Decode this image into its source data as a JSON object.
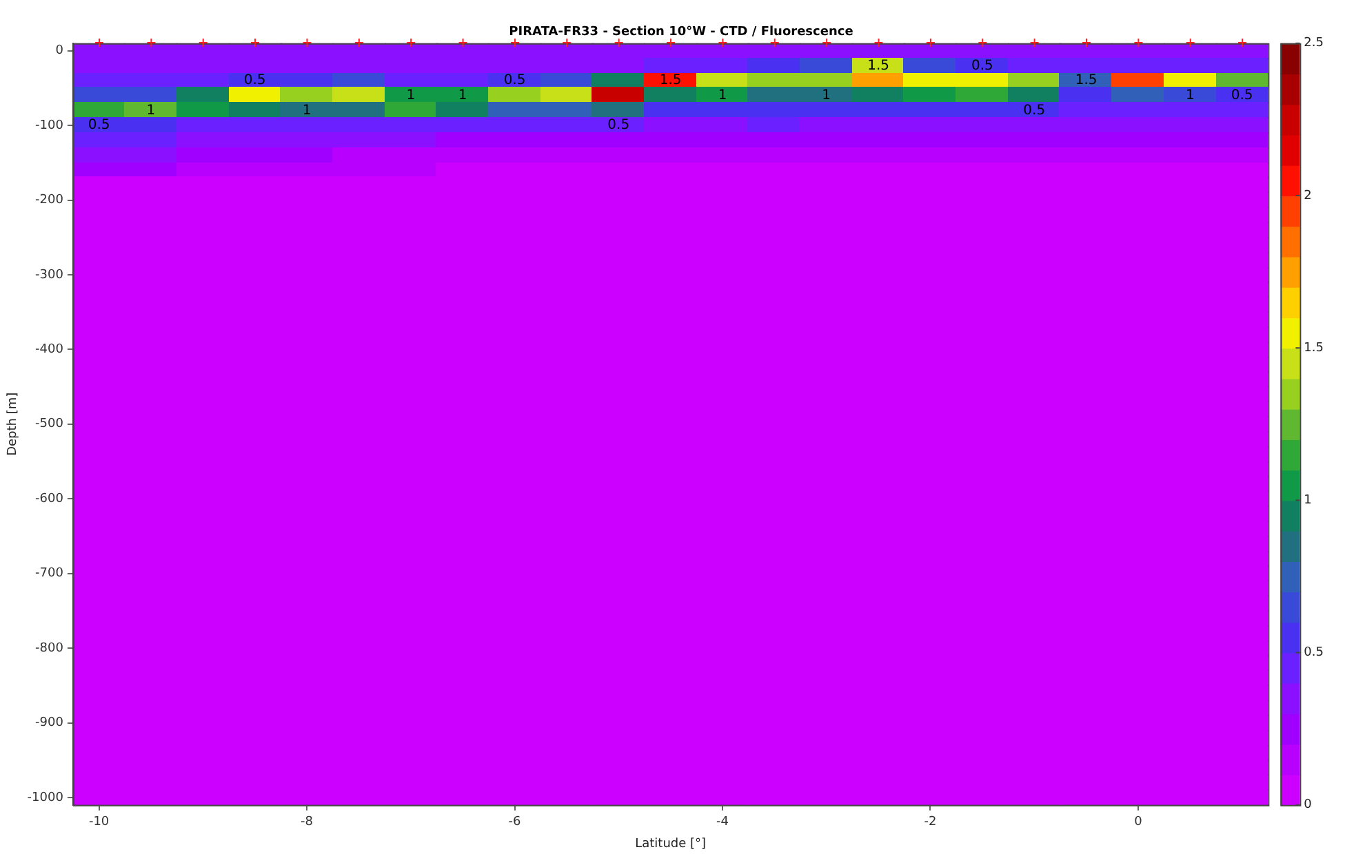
{
  "chart_data": {
    "type": "heatmap",
    "title": "PIRATA-FR33 - Section 10°W - CTD / Fluorescence",
    "xlabel": "Latitude [°]",
    "ylabel": "Depth [m]",
    "clim": [
      0,
      2.5
    ],
    "cticks": [
      0,
      0.5,
      1,
      1.5,
      2,
      2.5
    ],
    "categories": [
      "-10",
      null,
      null,
      null,
      "-8",
      null,
      null,
      null,
      "-6",
      null,
      null,
      null,
      "-4",
      null,
      null,
      null,
      "-2",
      null,
      null,
      null,
      "0",
      null,
      null
    ],
    "y_categories": [
      "0",
      null,
      null,
      null,
      null,
      "-100",
      null,
      null,
      null,
      null,
      "-200",
      null,
      null,
      null,
      null,
      "-300",
      null,
      null,
      null,
      null,
      "-400",
      null,
      null,
      null,
      null,
      "-500",
      null,
      null,
      null,
      null,
      "-600",
      null,
      null,
      null,
      null,
      "-700",
      null,
      null,
      null,
      null,
      "-800",
      null,
      null,
      null,
      null,
      "-900",
      null,
      null,
      null,
      null,
      "-1000"
    ],
    "cells": [
      [
        0.3,
        0.3,
        0.3,
        0.3,
        0.3,
        0.3,
        0.3,
        0.3,
        0.3,
        0.3,
        0.3,
        0.3,
        0.3,
        0.3,
        0.3,
        0.3,
        0.3,
        0.3,
        0.3,
        0.3,
        0.3,
        0.3,
        0.3
      ],
      [
        0.3,
        0.3,
        0.3,
        0.3,
        0.3,
        0.3,
        0.3,
        0.3,
        0.3,
        0.3,
        0.3,
        0.4,
        0.4,
        0.5,
        0.6,
        1.4,
        0.6,
        0.5,
        0.4,
        0.4,
        0.4,
        0.4,
        0.4
      ],
      [
        0.4,
        0.4,
        0.4,
        0.5,
        0.5,
        0.6,
        0.4,
        0.4,
        0.5,
        0.6,
        0.9,
        2.0,
        1.4,
        1.3,
        1.3,
        1.7,
        1.5,
        1.5,
        1.3,
        0.7,
        1.9,
        1.5,
        1.2
      ],
      [
        0.6,
        0.6,
        0.9,
        1.5,
        1.3,
        1.4,
        1.0,
        1.0,
        1.3,
        1.4,
        2.2,
        0.9,
        1.0,
        0.8,
        0.8,
        0.9,
        1.0,
        1.1,
        0.9,
        0.5,
        0.7,
        0.6,
        0.5
      ],
      [
        1.1,
        1.2,
        1.0,
        0.9,
        0.8,
        0.8,
        1.1,
        0.9,
        0.7,
        0.7,
        0.8,
        0.5,
        0.5,
        0.5,
        0.5,
        0.5,
        0.5,
        0.5,
        0.5,
        0.4,
        0.4,
        0.4,
        0.4
      ],
      [
        0.5,
        0.5,
        0.4,
        0.4,
        0.4,
        0.4,
        0.4,
        0.4,
        0.4,
        0.4,
        0.4,
        0.3,
        0.3,
        0.4,
        0.3,
        0.3,
        0.3,
        0.3,
        0.3,
        0.3,
        0.3,
        0.3,
        0.3
      ],
      [
        0.4,
        0.4,
        0.3,
        0.3,
        0.3,
        0.3,
        0.3,
        0.2,
        0.2,
        0.2,
        0.2,
        0.2,
        0.2,
        0.2,
        0.2,
        0.2,
        0.2,
        0.2,
        0.2,
        0.2,
        0.2,
        0.2,
        0.2
      ],
      [
        0.3,
        0.3,
        0.2,
        0.2,
        0.2,
        0.1,
        0.1,
        0.1,
        0.1,
        0.1,
        0.1,
        0.1,
        0.1,
        0.1,
        0.1,
        0.1,
        0.1,
        0.1,
        0.1,
        0.1,
        0.1,
        0.1,
        0.1
      ],
      [
        0.2,
        0.2,
        0.1,
        0.1,
        0.1,
        0.1,
        0.1,
        0,
        0,
        0,
        0,
        0,
        0,
        0,
        0,
        0,
        0,
        0,
        0,
        0,
        0,
        0,
        0
      ],
      [
        0,
        0,
        0,
        0,
        0,
        0,
        0,
        0,
        0,
        0,
        0,
        0,
        0,
        0,
        0,
        0,
        0,
        0,
        0,
        0,
        0,
        0,
        0
      ],
      [
        0,
        0,
        0,
        0,
        0,
        0,
        0,
        0,
        0,
        0,
        0,
        0,
        0,
        0,
        0,
        0,
        0,
        0,
        0,
        0,
        0,
        0,
        0
      ],
      [
        0,
        0,
        0,
        0,
        0,
        0,
        0,
        0,
        0,
        0,
        0,
        0,
        0,
        0,
        0,
        0,
        0,
        0,
        0,
        0,
        0,
        0,
        0
      ],
      [
        0,
        0,
        0,
        0,
        0,
        0,
        0,
        0,
        0,
        0,
        0,
        0,
        0,
        0,
        0,
        0,
        0,
        0,
        0,
        0,
        0,
        0,
        0
      ],
      [
        0,
        0,
        0,
        0,
        0,
        0,
        0,
        0,
        0,
        0,
        0,
        0,
        0,
        0,
        0,
        0,
        0,
        0,
        0,
        0,
        0,
        0,
        0
      ],
      [
        0,
        0,
        0,
        0,
        0,
        0,
        0,
        0,
        0,
        0,
        0,
        0,
        0,
        0,
        0,
        0,
        0,
        0,
        0,
        0,
        0,
        0,
        0
      ],
      [
        0,
        0,
        0,
        0,
        0,
        0,
        0,
        0,
        0,
        0,
        0,
        0,
        0,
        0,
        0,
        0,
        0,
        0,
        0,
        0,
        0,
        0,
        0
      ],
      [
        0,
        0,
        0,
        0,
        0,
        0,
        0,
        0,
        0,
        0,
        0,
        0,
        0,
        0,
        0,
        0,
        0,
        0,
        0,
        0,
        0,
        0,
        0
      ],
      [
        0,
        0,
        0,
        0,
        0,
        0,
        0,
        0,
        0,
        0,
        0,
        0,
        0,
        0,
        0,
        0,
        0,
        0,
        0,
        0,
        0,
        0,
        0
      ],
      [
        0,
        0,
        0,
        0,
        0,
        0,
        0,
        0,
        0,
        0,
        0,
        0,
        0,
        0,
        0,
        0,
        0,
        0,
        0,
        0,
        0,
        0,
        0
      ],
      [
        0,
        0,
        0,
        0,
        0,
        0,
        0,
        0,
        0,
        0,
        0,
        0,
        0,
        0,
        0,
        0,
        0,
        0,
        0,
        0,
        0,
        0,
        0
      ],
      [
        0,
        0,
        0,
        0,
        0,
        0,
        0,
        0,
        0,
        0,
        0,
        0,
        0,
        0,
        0,
        0,
        0,
        0,
        0,
        0,
        0,
        0,
        0
      ],
      [
        0,
        0,
        0,
        0,
        0,
        0,
        0,
        0,
        0,
        0,
        0,
        0,
        0,
        0,
        0,
        0,
        0,
        0,
        0,
        0,
        0,
        0,
        0
      ],
      [
        0,
        0,
        0,
        0,
        0,
        0,
        0,
        0,
        0,
        0,
        0,
        0,
        0,
        0,
        0,
        0,
        0,
        0,
        0,
        0,
        0,
        0,
        0
      ],
      [
        0,
        0,
        0,
        0,
        0,
        0,
        0,
        0,
        0,
        0,
        0,
        0,
        0,
        0,
        0,
        0,
        0,
        0,
        0,
        0,
        0,
        0,
        0
      ],
      [
        0,
        0,
        0,
        0,
        0,
        0,
        0,
        0,
        0,
        0,
        0,
        0,
        0,
        0,
        0,
        0,
        0,
        0,
        0,
        0,
        0,
        0,
        0
      ],
      [
        0,
        0,
        0,
        0,
        0,
        0,
        0,
        0,
        0,
        0,
        0,
        0,
        0,
        0,
        0,
        0,
        0,
        0,
        0,
        0,
        0,
        0,
        0
      ],
      [
        0,
        0,
        0,
        0,
        0,
        0,
        0,
        0,
        0,
        0,
        0,
        0,
        0,
        0,
        0,
        0,
        0,
        0,
        0,
        0,
        0,
        0,
        0
      ],
      [
        0,
        0,
        0,
        0,
        0,
        0,
        0,
        0,
        0,
        0,
        0,
        0,
        0,
        0,
        0,
        0,
        0,
        0,
        0,
        0,
        0,
        0,
        0
      ],
      [
        0,
        0,
        0,
        0,
        0,
        0,
        0,
        0,
        0,
        0,
        0,
        0,
        0,
        0,
        0,
        0,
        0,
        0,
        0,
        0,
        0,
        0,
        0
      ],
      [
        0,
        0,
        0,
        0,
        0,
        0,
        0,
        0,
        0,
        0,
        0,
        0,
        0,
        0,
        0,
        0,
        0,
        0,
        0,
        0,
        0,
        0,
        0
      ],
      [
        0,
        0,
        0,
        0,
        0,
        0,
        0,
        0,
        0,
        0,
        0,
        0,
        0,
        0,
        0,
        0,
        0,
        0,
        0,
        0,
        0,
        0,
        0
      ],
      [
        0,
        0,
        0,
        0,
        0,
        0,
        0,
        0,
        0,
        0,
        0,
        0,
        0,
        0,
        0,
        0,
        0,
        0,
        0,
        0,
        0,
        0,
        0
      ],
      [
        0,
        0,
        0,
        0,
        0,
        0,
        0,
        0,
        0,
        0,
        0,
        0,
        0,
        0,
        0,
        0,
        0,
        0,
        0,
        0,
        0,
        0,
        0
      ],
      [
        0,
        0,
        0,
        0,
        0,
        0,
        0,
        0,
        0,
        0,
        0,
        0,
        0,
        0,
        0,
        0,
        0,
        0,
        0,
        0,
        0,
        0,
        0
      ],
      [
        0,
        0,
        0,
        0,
        0,
        0,
        0,
        0,
        0,
        0,
        0,
        0,
        0,
        0,
        0,
        0,
        0,
        0,
        0,
        0,
        0,
        0,
        0
      ],
      [
        0,
        0,
        0,
        0,
        0,
        0,
        0,
        0,
        0,
        0,
        0,
        0,
        0,
        0,
        0,
        0,
        0,
        0,
        0,
        0,
        0,
        0,
        0
      ],
      [
        0,
        0,
        0,
        0,
        0,
        0,
        0,
        0,
        0,
        0,
        0,
        0,
        0,
        0,
        0,
        0,
        0,
        0,
        0,
        0,
        0,
        0,
        0
      ],
      [
        0,
        0,
        0,
        0,
        0,
        0,
        0,
        0,
        0,
        0,
        0,
        0,
        0,
        0,
        0,
        0,
        0,
        0,
        0,
        0,
        0,
        0,
        0
      ],
      [
        0,
        0,
        0,
        0,
        0,
        0,
        0,
        0,
        0,
        0,
        0,
        0,
        0,
        0,
        0,
        0,
        0,
        0,
        0,
        0,
        0,
        0,
        0
      ],
      [
        0,
        0,
        0,
        0,
        0,
        0,
        0,
        0,
        0,
        0,
        0,
        0,
        0,
        0,
        0,
        0,
        0,
        0,
        0,
        0,
        0,
        0,
        0
      ],
      [
        0,
        0,
        0,
        0,
        0,
        0,
        0,
        0,
        0,
        0,
        0,
        0,
        0,
        0,
        0,
        0,
        0,
        0,
        0,
        0,
        0,
        0,
        0
      ],
      [
        0,
        0,
        0,
        0,
        0,
        0,
        0,
        0,
        0,
        0,
        0,
        0,
        0,
        0,
        0,
        0,
        0,
        0,
        0,
        0,
        0,
        0,
        0
      ],
      [
        0,
        0,
        0,
        0,
        0,
        0,
        0,
        0,
        0,
        0,
        0,
        0,
        0,
        0,
        0,
        0,
        0,
        0,
        0,
        0,
        0,
        0,
        0
      ],
      [
        0,
        0,
        0,
        0,
        0,
        0,
        0,
        0,
        0,
        0,
        0,
        0,
        0,
        0,
        0,
        0,
        0,
        0,
        0,
        0,
        0,
        0,
        0
      ],
      [
        0,
        0,
        0,
        0,
        0,
        0,
        0,
        0,
        0,
        0,
        0,
        0,
        0,
        0,
        0,
        0,
        0,
        0,
        0,
        0,
        0,
        0,
        0
      ],
      [
        0,
        0,
        0,
        0,
        0,
        0,
        0,
        0,
        0,
        0,
        0,
        0,
        0,
        0,
        0,
        0,
        0,
        0,
        0,
        0,
        0,
        0,
        0
      ],
      [
        0,
        0,
        0,
        0,
        0,
        0,
        0,
        0,
        0,
        0,
        0,
        0,
        0,
        0,
        0,
        0,
        0,
        0,
        0,
        0,
        0,
        0,
        0
      ],
      [
        0,
        0,
        0,
        0,
        0,
        0,
        0,
        0,
        0,
        0,
        0,
        0,
        0,
        0,
        0,
        0,
        0,
        0,
        0,
        0,
        0,
        0,
        0
      ],
      [
        0,
        0,
        0,
        0,
        0,
        0,
        0,
        0,
        0,
        0,
        0,
        0,
        0,
        0,
        0,
        0,
        0,
        0,
        0,
        0,
        0,
        0,
        0
      ],
      [
        0,
        0,
        0,
        0,
        0,
        0,
        0,
        0,
        0,
        0,
        0,
        0,
        0,
        0,
        0,
        0,
        0,
        0,
        0,
        0,
        0,
        0,
        0
      ],
      [
        0,
        0,
        0,
        0,
        0,
        0,
        0,
        0,
        0,
        0,
        0,
        0,
        0,
        0,
        0,
        0,
        0,
        0,
        0,
        0,
        0,
        0,
        0
      ]
    ],
    "annotations": [
      "0.5",
      "1",
      "0.5",
      "1",
      "1",
      "1",
      "0.5",
      "0.5",
      "1.5",
      "1",
      "1",
      "1.5",
      "0.5",
      "0.5",
      "1.5",
      "1",
      "0.5"
    ]
  }
}
